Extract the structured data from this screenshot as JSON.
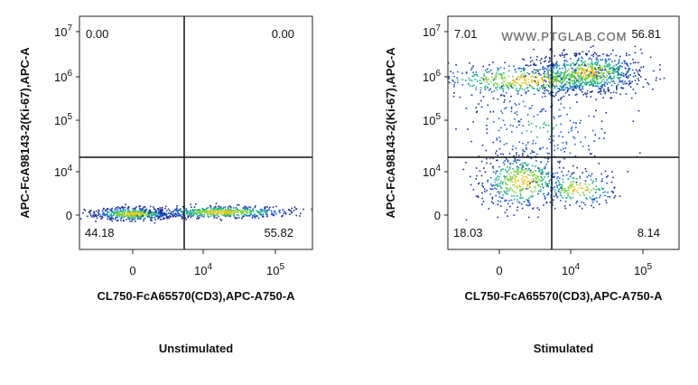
{
  "panels": [
    {
      "y_label": "APC-FcA98143-2(Ki-67),APC-A",
      "x_label": "CL750-FcA65570(CD3),APC-A750-A",
      "caption": "Unstimulated",
      "yticks": [
        {
          "base": "10",
          "exp": "7"
        },
        {
          "base": "10",
          "exp": "6"
        },
        {
          "base": "10",
          "exp": "5"
        },
        {
          "base": "10",
          "exp": "4"
        },
        {
          "base": "0"
        }
      ],
      "xticks": [
        {
          "base": "0"
        },
        {
          "base": "10",
          "exp": "4"
        },
        {
          "base": "10",
          "exp": "5"
        }
      ],
      "quadrants": {
        "upper_left": "0.00",
        "upper_right": "0.00",
        "lower_left": "44.18",
        "lower_right": "55.82"
      }
    },
    {
      "y_label": "APC-FcA98143-2(Ki-67),APC-A",
      "x_label": "CL750-FcA65570(CD3),APC-A750-A",
      "caption": "Stimulated",
      "yticks": [
        {
          "base": "10",
          "exp": "7"
        },
        {
          "base": "10",
          "exp": "6"
        },
        {
          "base": "10",
          "exp": "5"
        },
        {
          "base": "10",
          "exp": "4"
        },
        {
          "base": "0"
        }
      ],
      "xticks": [
        {
          "base": "0"
        },
        {
          "base": "10",
          "exp": "4"
        },
        {
          "base": "10",
          "exp": "5"
        }
      ],
      "quadrants": {
        "upper_left": "7.01",
        "upper_right": "56.81",
        "lower_left": "18.03",
        "lower_right": "8.14"
      },
      "watermark": "WWW.PTGLAB.COM"
    }
  ]
}
